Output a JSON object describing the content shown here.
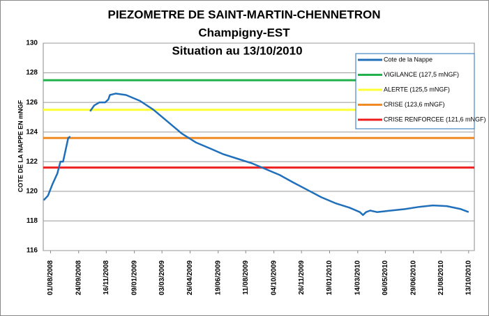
{
  "chart_data": {
    "type": "line",
    "title": "PIEZOMETRE DE SAINT-MARTIN-CHENNETRON",
    "subtitle": "Champigny-EST",
    "annotation": "Situation au 13/10/2010",
    "y_label": "COTE DE LA NAPPE EN mNGF",
    "ylim": [
      116,
      130
    ],
    "yticks": [
      116,
      118,
      120,
      122,
      124,
      126,
      128,
      130
    ],
    "xlim": [
      "2008-07-18",
      "2010-10-24"
    ],
    "xticks": [
      {
        "value": "2008-08-01",
        "label": "01/08/2008"
      },
      {
        "value": "2008-09-24",
        "label": "24/09/2008"
      },
      {
        "value": "2008-11-16",
        "label": "16/11/2008"
      },
      {
        "value": "2009-01-09",
        "label": "09/01/2009"
      },
      {
        "value": "2009-03-03",
        "label": "03/03/2009"
      },
      {
        "value": "2009-04-26",
        "label": "26/04/2009"
      },
      {
        "value": "2009-06-19",
        "label": "19/06/2009"
      },
      {
        "value": "2009-08-11",
        "label": "11/08/2009"
      },
      {
        "value": "2009-10-04",
        "label": "04/10/2009"
      },
      {
        "value": "2009-11-26",
        "label": "26/11/2009"
      },
      {
        "value": "2010-01-19",
        "label": "19/01/2010"
      },
      {
        "value": "2010-03-14",
        "label": "14/03/2010"
      },
      {
        "value": "2010-05-06",
        "label": "06/05/2010"
      },
      {
        "value": "2010-06-29",
        "label": "29/06/2010"
      },
      {
        "value": "2010-08-21",
        "label": "21/08/2010"
      },
      {
        "value": "2010-10-13",
        "label": "13/10/2010"
      }
    ],
    "grid": true,
    "legend": "top-right",
    "series": [
      {
        "name": "Cote de la Nappe",
        "color": "#1f6fba",
        "x": [
          "2008-07-19",
          "2008-07-27",
          "2008-08-05",
          "2008-08-14",
          "2008-08-20",
          "2008-08-25",
          "2008-08-30",
          "2008-09-04",
          "2008-09-08",
          "2008-09-28",
          "2008-10-16",
          "2008-10-24",
          "2008-11-03",
          "2008-11-14",
          "2008-11-20",
          "2008-11-23",
          "2008-12-04",
          "2008-12-24",
          "2009-01-20",
          "2009-02-15",
          "2009-03-14",
          "2009-04-10",
          "2009-05-07",
          "2009-06-03",
          "2009-06-29",
          "2009-07-26",
          "2009-08-22",
          "2009-09-18",
          "2009-10-15",
          "2009-11-10",
          "2009-12-07",
          "2010-01-03",
          "2010-01-30",
          "2010-02-26",
          "2010-03-18",
          "2010-03-24",
          "2010-03-30",
          "2010-04-07",
          "2010-04-20",
          "2010-05-17",
          "2010-06-13",
          "2010-07-10",
          "2010-08-05",
          "2010-09-01",
          "2010-09-28",
          "2010-10-13"
        ],
        "values": [
          119.4,
          119.7,
          120.5,
          121.2,
          122.0,
          122.0,
          122.8,
          123.6,
          123.7,
          null,
          125.4,
          125.8,
          126.0,
          126.0,
          126.2,
          126.5,
          126.6,
          126.5,
          126.1,
          125.5,
          124.7,
          123.9,
          123.3,
          122.9,
          122.5,
          122.2,
          121.9,
          121.5,
          121.1,
          120.6,
          120.1,
          119.6,
          119.2,
          118.9,
          118.6,
          118.4,
          118.6,
          118.7,
          118.6,
          118.7,
          118.8,
          118.95,
          119.05,
          119.0,
          118.8,
          118.6
        ]
      }
    ],
    "thresholds": [
      {
        "name": "VIGILANCE (127,5 mNGF)",
        "value": 127.5,
        "color": "#22b14c"
      },
      {
        "name": "ALERTE (125,5 mNGF)",
        "value": 125.5,
        "color": "#ffff33"
      },
      {
        "name": "CRISE (123,6 mNGF)",
        "value": 123.6,
        "color": "#f08a24"
      },
      {
        "name": "CRISE RENFORCEE (121,6 mNGF)",
        "value": 121.6,
        "color": "#ee1c1c"
      }
    ]
  }
}
